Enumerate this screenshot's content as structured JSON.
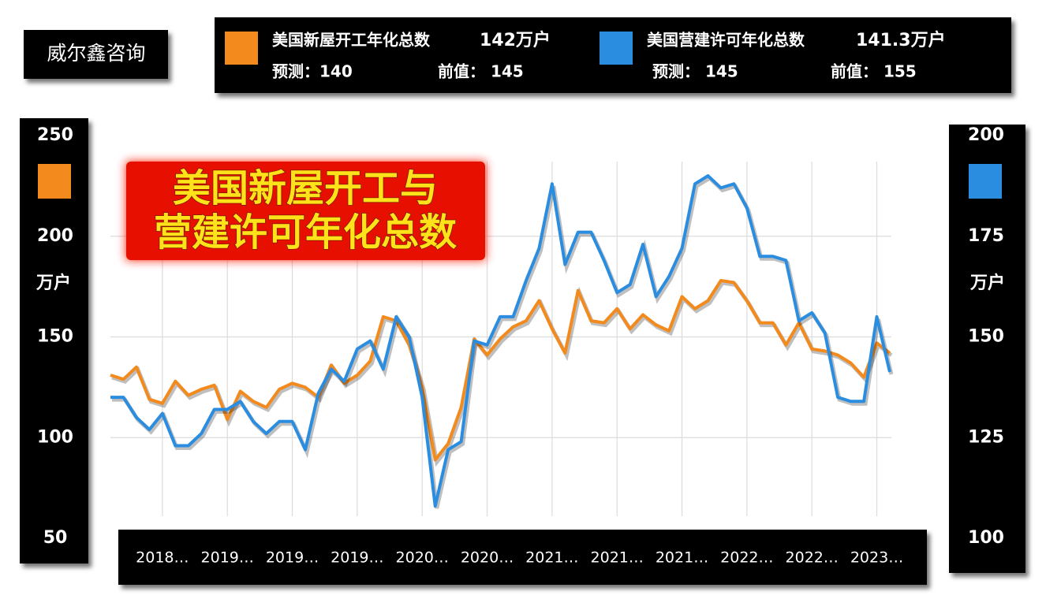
{
  "chart_data": {
    "type": "line",
    "source": "威尔鑫咨询",
    "title": [
      "美国新屋开工与",
      "营建许可年化总数"
    ],
    "y_unit": "万户",
    "y2_unit": "万户",
    "categories": [
      null,
      null,
      null,
      null,
      "2018…",
      null,
      null,
      null,
      null,
      "2019…",
      null,
      null,
      null,
      null,
      "2019…",
      null,
      null,
      null,
      null,
      "2019…",
      null,
      null,
      null,
      null,
      "2020…",
      null,
      null,
      null,
      null,
      "2020…",
      null,
      null,
      null,
      null,
      "2021…",
      null,
      null,
      null,
      null,
      "2021…",
      null,
      null,
      null,
      null,
      "2021…",
      null,
      null,
      null,
      null,
      "2022…",
      null,
      null,
      null,
      null,
      "2022…",
      null,
      null,
      null,
      null,
      "2023…",
      null
    ],
    "ylim": [
      50,
      250
    ],
    "yticks": [
      50,
      100,
      150,
      200,
      250
    ],
    "y2lim": [
      100,
      200
    ],
    "y2ticks": [
      100,
      125,
      150,
      175,
      200
    ],
    "grid": true,
    "series": [
      {
        "name": "美国新屋开工年化总数",
        "color": "#f28a1e",
        "axis": "y",
        "headline": "142万户",
        "forecast": "预测：140",
        "previous": "前值：  145",
        "values": [
          131,
          129,
          135,
          119,
          117,
          128,
          121,
          124,
          126,
          109,
          123,
          118,
          115,
          124,
          127,
          125,
          120,
          136,
          127,
          131,
          138,
          160,
          158,
          146,
          125,
          89,
          97,
          115,
          149,
          141,
          149,
          155,
          158,
          168,
          154,
          142,
          173,
          158,
          157,
          164,
          154,
          161,
          156,
          153,
          170,
          164,
          168,
          178,
          177,
          168,
          157,
          157,
          146,
          157,
          144,
          143,
          141,
          137,
          130,
          147,
          142
        ]
      },
      {
        "name": "美国营建许可年化总数",
        "color": "#2b8de0",
        "axis": "y2",
        "headline": "141.3万户",
        "forecast": "预测：  145",
        "previous": "前值：  155",
        "values": [
          135,
          135,
          130,
          127,
          131,
          123,
          123,
          126,
          132,
          132,
          134,
          129,
          126,
          129,
          129,
          122,
          136,
          142,
          139,
          147,
          149,
          142,
          155,
          150,
          135,
          108,
          122,
          124,
          149,
          148,
          155,
          155,
          164,
          172,
          188,
          168,
          176,
          176,
          169,
          161,
          163,
          173,
          160,
          165,
          172,
          188,
          190,
          187,
          188,
          182,
          170,
          170,
          169,
          154,
          156,
          151,
          135,
          134,
          134,
          155,
          141.3
        ]
      }
    ]
  }
}
